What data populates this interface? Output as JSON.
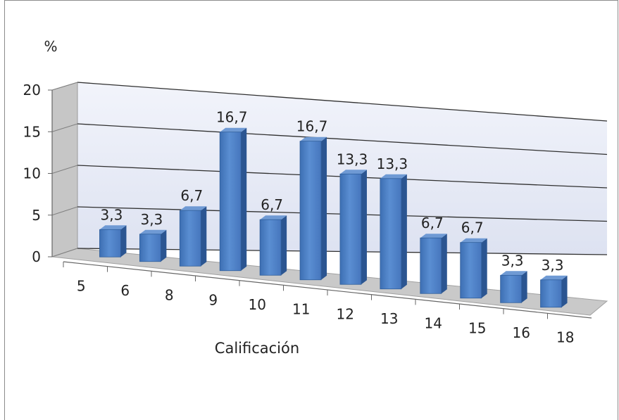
{
  "chart_data": {
    "type": "bar",
    "title": "",
    "xlabel": "Calificación",
    "ylabel": "%",
    "ylim": [
      0,
      20
    ],
    "yticks": [
      "0",
      "5",
      "10",
      "15",
      "20"
    ],
    "grid": true,
    "legend": "none",
    "categories": [
      "5",
      "6",
      "8",
      "9",
      "10",
      "11",
      "12",
      "13",
      "14",
      "15",
      "16",
      "18"
    ],
    "values": [
      3.3,
      3.3,
      6.7,
      16.7,
      6.7,
      16.7,
      13.3,
      13.3,
      6.7,
      6.7,
      3.3,
      3.3
    ],
    "data_labels": [
      "3,3",
      "3,3",
      "6,7",
      "16,7",
      "6,7",
      "16,7",
      "13,3",
      "13,3",
      "6,7",
      "6,7",
      "3,3",
      "3,3"
    ],
    "bar_color": "#4f81bd"
  }
}
